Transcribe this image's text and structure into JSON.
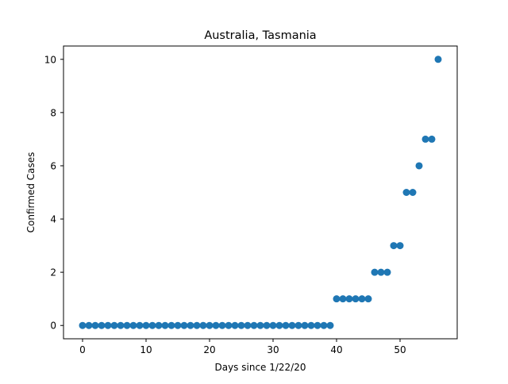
{
  "chart_data": {
    "type": "scatter",
    "title": "Australia, Tasmania",
    "xlabel": "Days since 1/22/20",
    "ylabel": "Confirmed Cases",
    "xlim": [
      -3,
      59
    ],
    "ylim": [
      -0.5,
      10.5
    ],
    "x_ticks": [
      0,
      10,
      20,
      30,
      40,
      50
    ],
    "y_ticks": [
      0,
      2,
      4,
      6,
      8,
      10
    ],
    "grid": false,
    "marker_color": "#1f77b4",
    "series": [
      {
        "x": [
          0,
          1,
          2,
          3,
          4,
          5,
          6,
          7,
          8,
          9,
          10,
          11,
          12,
          13,
          14,
          15,
          16,
          17,
          18,
          19,
          20,
          21,
          22,
          23,
          24,
          25,
          26,
          27,
          28,
          29,
          30,
          31,
          32,
          33,
          34,
          35,
          36,
          37,
          38,
          39,
          40,
          41,
          42,
          43,
          44,
          45,
          46,
          47,
          48,
          49,
          50,
          51,
          52,
          53,
          54,
          55,
          56
        ],
        "y": [
          0,
          0,
          0,
          0,
          0,
          0,
          0,
          0,
          0,
          0,
          0,
          0,
          0,
          0,
          0,
          0,
          0,
          0,
          0,
          0,
          0,
          0,
          0,
          0,
          0,
          0,
          0,
          0,
          0,
          0,
          0,
          0,
          0,
          0,
          0,
          0,
          0,
          0,
          0,
          0,
          1,
          1,
          1,
          1,
          1,
          1,
          2,
          2,
          2,
          3,
          3,
          5,
          5,
          6,
          7,
          7,
          10
        ]
      }
    ]
  }
}
